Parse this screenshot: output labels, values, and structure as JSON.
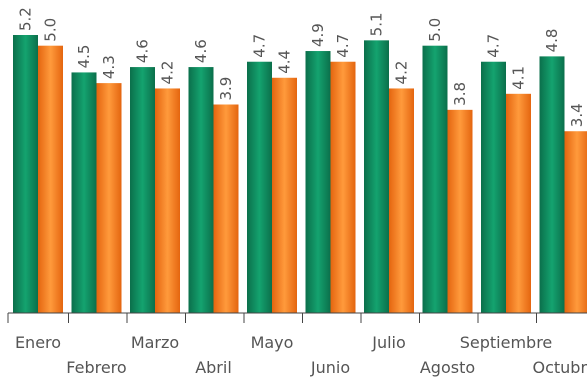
{
  "chart_data": {
    "type": "bar",
    "categories": [
      "Enero",
      "Febrero",
      "Marzo",
      "Abril",
      "Mayo",
      "Junio",
      "Julio",
      "Agosto",
      "Septiembre",
      "Octubre"
    ],
    "series": [
      {
        "values": [
          5.2,
          4.5,
          4.6,
          4.6,
          4.7,
          4.9,
          5.1,
          5.0,
          4.7,
          4.8
        ],
        "color": "#0e8a5f"
      },
      {
        "values": [
          5.0,
          4.3,
          4.2,
          3.9,
          4.4,
          4.7,
          4.2,
          3.8,
          4.1,
          3.4
        ],
        "color": "#f07a1e"
      }
    ],
    "value_labels": [
      [
        "5.2",
        "4.5",
        "4.6",
        "4.6",
        "4.7",
        "4.9",
        "5.1",
        "5.0",
        "4.7",
        "4.8"
      ],
      [
        "5.0",
        "4.3",
        "4.2",
        "3.9",
        "4.4",
        "4.7",
        "4.2",
        "3.8",
        "4.1",
        "3.4"
      ]
    ],
    "ylim": [
      0,
      5.2
    ],
    "grid": false,
    "legend": "none",
    "category_labels_staggered": true,
    "value_label_rotation": "vertical"
  }
}
